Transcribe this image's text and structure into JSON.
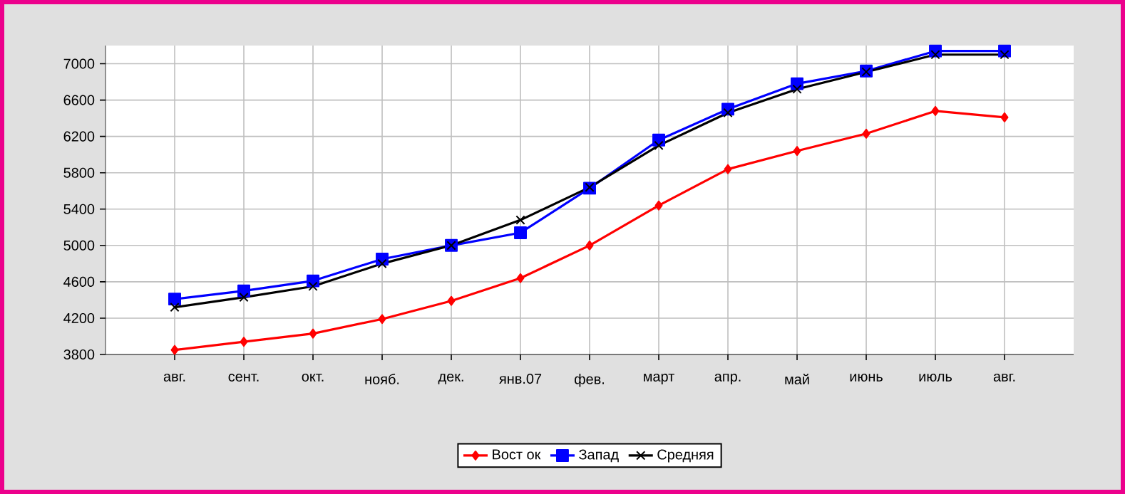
{
  "chart_data": {
    "type": "line",
    "categories": [
      "авг.",
      "сент.",
      "окт.",
      "нояб.",
      "дек.",
      "янв.07",
      "фев.",
      "март",
      "апр.",
      "май",
      "июнь",
      "июль",
      "авг."
    ],
    "series": [
      {
        "name": "Вост ок",
        "color": "#ff0000",
        "marker": "diamond",
        "values": [
          3850,
          3940,
          4030,
          4190,
          4390,
          4640,
          5000,
          5440,
          5840,
          6040,
          6230,
          6480,
          6410
        ]
      },
      {
        "name": "Запад",
        "color": "#0000ff",
        "marker": "square",
        "values": [
          4410,
          4500,
          4610,
          4850,
          5000,
          5140,
          5630,
          6160,
          6500,
          6780,
          6920,
          7140,
          7140
        ]
      },
      {
        "name": "Средняя",
        "color": "#000000",
        "marker": "cross",
        "values": [
          4320,
          4430,
          4550,
          4800,
          5000,
          5280,
          5640,
          6100,
          6460,
          6720,
          6910,
          7100,
          7100
        ]
      }
    ],
    "ylim": [
      3800,
      7200
    ],
    "yticks": [
      3800,
      4200,
      4600,
      5000,
      5400,
      5800,
      6200,
      6600,
      7000
    ],
    "grid": true,
    "legend": "bottom",
    "line_style": "solid"
  }
}
